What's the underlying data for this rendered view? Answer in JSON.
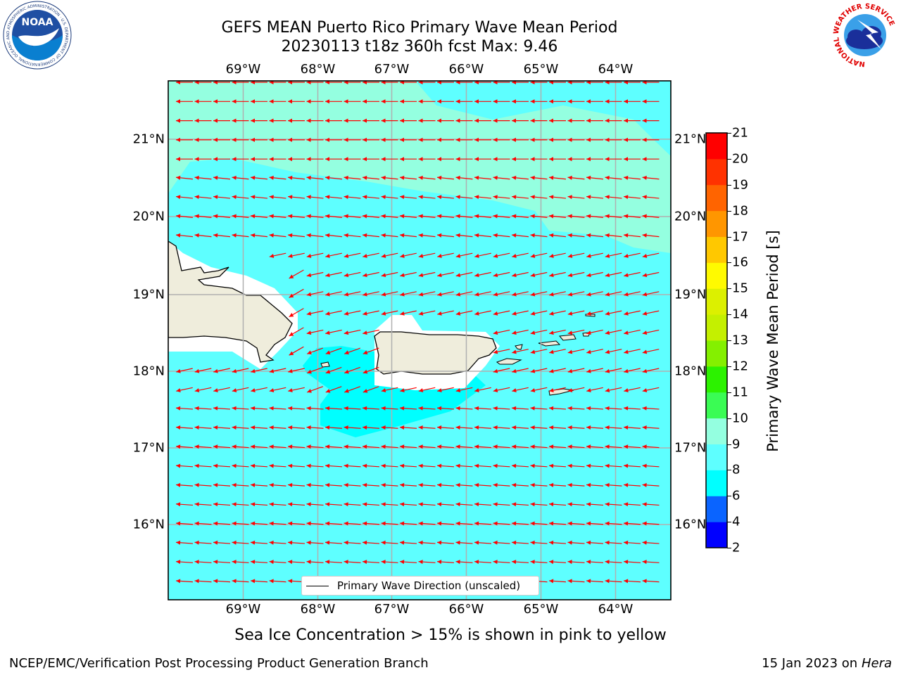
{
  "title_line1": "GEFS MEAN Puerto Rico Primary Wave Mean Period",
  "title_line2": "20230113 t18z 360h fcst   Max: 9.46",
  "lon_labels": [
    "69°W",
    "68°W",
    "67°W",
    "66°W",
    "65°W",
    "64°W"
  ],
  "lat_labels": [
    "21°N",
    "20°N",
    "19°N",
    "18°N",
    "17°N",
    "16°N"
  ],
  "colorbar": {
    "label": "Primary Wave Mean Period [s]",
    "ticks": [
      "2",
      "4",
      "6",
      "8",
      "9",
      "10",
      "11",
      "12",
      "13",
      "14",
      "15",
      "16",
      "17",
      "18",
      "19",
      "20",
      "21"
    ],
    "colors": [
      "#0000ff",
      "#0a64ff",
      "#00ffff",
      "#5effff",
      "#94ffe0",
      "#3afc54",
      "#2cf200",
      "#84f000",
      "#c4f000",
      "#dcf000",
      "#fffa00",
      "#ffc800",
      "#ff9600",
      "#ff6400",
      "#ff3200",
      "#ff0000"
    ]
  },
  "legend_label": "Primary Wave Direction (unscaled)",
  "sea_ice_note": "Sea Ice Concentration > 15% is shown in pink to yellow",
  "credit_left": "NCEP/EMC/Verification Post Processing Product Generation Branch",
  "credit_right_prefix": "15 Jan 2023 on ",
  "credit_right_host": "Hera",
  "logos": {
    "left": "noaa-logo",
    "right": "nws-logo"
  },
  "logo_text": {
    "noaa_letters": "NOAA",
    "noaa_ring": "NATIONAL OCEANIC AND ATMOSPHERIC ADMINISTRATION · U.S. DEPARTMENT OF COMMERCE",
    "nws_ring": "NATIONAL WEATHER SERVICE"
  },
  "colors": {
    "arrow": "#ff0000",
    "land": "#efeddc",
    "sea_main": "#5effff",
    "sea_light": "#94ffe0",
    "sea_dark": "#00ffff"
  }
}
